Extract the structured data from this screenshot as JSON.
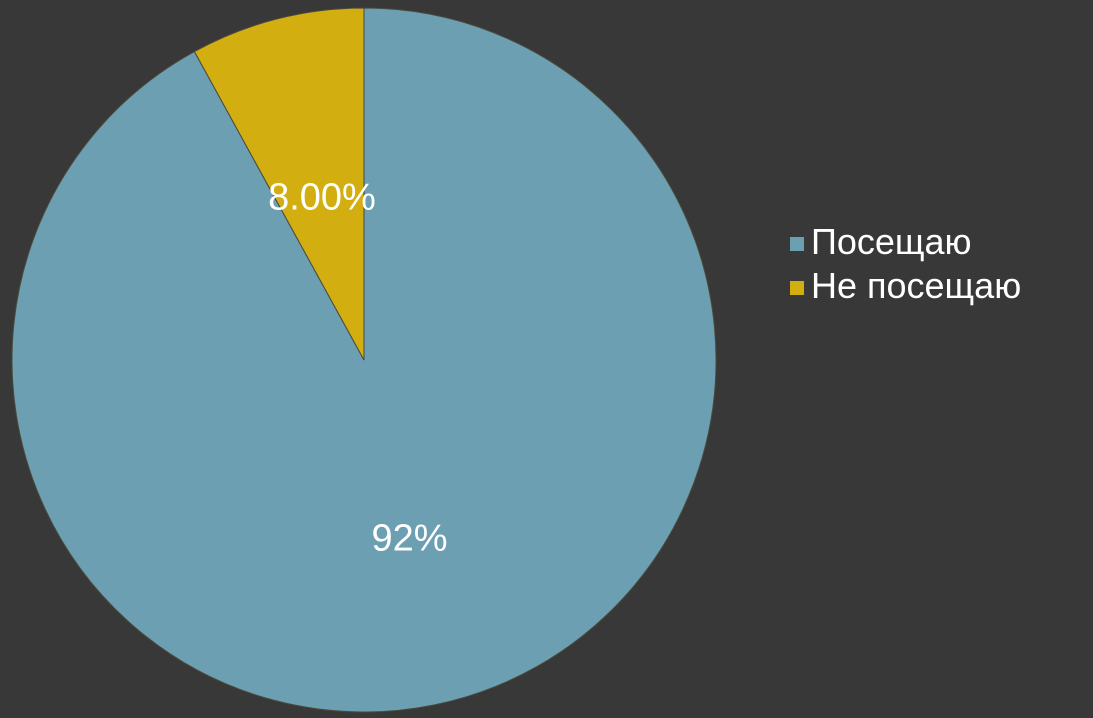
{
  "chart_data": {
    "type": "pie",
    "categories": [
      "Посещаю",
      "Не посещаю"
    ],
    "values": [
      92,
      8
    ],
    "data_labels": [
      "92%",
      "8.00%"
    ],
    "colors": [
      "#6c9fb1",
      "#d3ae10"
    ],
    "start_angle_clockwise_from_top": "Посещаю slice begins at 12 o'clock going clockwise",
    "legend_position": "right",
    "title": ""
  },
  "legend": {
    "items": [
      {
        "label": "Посещаю",
        "color": "#6c9fb1"
      },
      {
        "label": "Не посещаю",
        "color": "#d3ae10"
      }
    ]
  }
}
